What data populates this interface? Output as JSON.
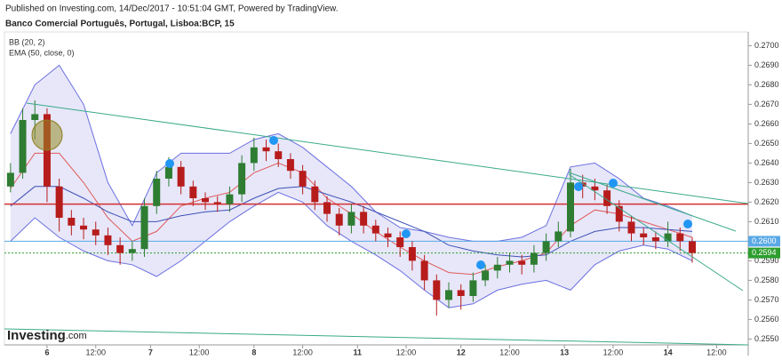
{
  "header": {
    "text": "Published on Investing.com, 14/Dec/2017 - 10:51:04 GMT, Powered by TradingView."
  },
  "logo": {
    "main": "Investing",
    "suffix": ".com"
  },
  "chart_data": {
    "type": "candlestick",
    "title": "Banco Comercial Português, Portugal, Lisboa:BCP, 15",
    "indicators": [
      "BB (20, 2)",
      "EMA (50, close, 0)"
    ],
    "x": [
      -3,
      -2,
      -1,
      0,
      1,
      2,
      3,
      4,
      5,
      6,
      7,
      8,
      9,
      10,
      11,
      12,
      13,
      14,
      15,
      16,
      17,
      18,
      19,
      20,
      21,
      22,
      23,
      24,
      25,
      26,
      27,
      28,
      29,
      30,
      31,
      32,
      33,
      34,
      35,
      36,
      37,
      38,
      39,
      40,
      41,
      42,
      43,
      44,
      45,
      46,
      47,
      48,
      49,
      50,
      51,
      52,
      53
    ],
    "open": [
      0.2628,
      0.2635,
      0.2662,
      0.2665,
      0.2628,
      0.2612,
      0.2608,
      0.2606,
      0.2603,
      0.2598,
      0.2594,
      0.2596,
      0.2618,
      0.2632,
      0.2638,
      0.2628,
      0.2622,
      0.262,
      0.2619,
      0.2624,
      0.264,
      0.2648,
      0.2646,
      0.2642,
      0.2636,
      0.2628,
      0.262,
      0.2614,
      0.2608,
      0.2615,
      0.2608,
      0.2604,
      0.2602,
      0.2597,
      0.259,
      0.258,
      0.257,
      0.2575,
      0.2572,
      0.258,
      0.2585,
      0.2588,
      0.259,
      0.2588,
      0.2594,
      0.26,
      0.2605,
      0.263,
      0.2628,
      0.2626,
      0.2618,
      0.261,
      0.2604,
      0.2602,
      0.26,
      0.2604,
      0.26
    ],
    "high": [
      0.264,
      0.2668,
      0.2672,
      0.2668,
      0.2632,
      0.2616,
      0.2612,
      0.261,
      0.2607,
      0.2602,
      0.26,
      0.2622,
      0.2636,
      0.2643,
      0.2641,
      0.2631,
      0.2625,
      0.2623,
      0.2628,
      0.2644,
      0.2653,
      0.2652,
      0.265,
      0.2645,
      0.2639,
      0.2631,
      0.2623,
      0.2617,
      0.2619,
      0.2618,
      0.2611,
      0.2607,
      0.2605,
      0.26,
      0.2593,
      0.2583,
      0.2579,
      0.2578,
      0.2584,
      0.2588,
      0.2592,
      0.2594,
      0.2593,
      0.2598,
      0.2604,
      0.261,
      0.2637,
      0.2634,
      0.2632,
      0.2629,
      0.2621,
      0.2613,
      0.2607,
      0.2605,
      0.261,
      0.2607,
      0.2602
    ],
    "low": [
      0.2625,
      0.2632,
      0.2652,
      0.262,
      0.2605,
      0.2603,
      0.2601,
      0.2598,
      0.2593,
      0.2588,
      0.259,
      0.2592,
      0.2614,
      0.2628,
      0.2624,
      0.2618,
      0.2616,
      0.2615,
      0.2615,
      0.262,
      0.2636,
      0.2641,
      0.2638,
      0.2632,
      0.2624,
      0.2616,
      0.261,
      0.2603,
      0.2604,
      0.2604,
      0.26,
      0.2597,
      0.2592,
      0.2585,
      0.2575,
      0.2562,
      0.2566,
      0.2565,
      0.2569,
      0.2577,
      0.2581,
      0.2584,
      0.2583,
      0.2584,
      0.259,
      0.2597,
      0.2602,
      0.2622,
      0.2621,
      0.2614,
      0.2605,
      0.26,
      0.2598,
      0.2596,
      0.2597,
      0.2595,
      0.2589
    ],
    "close": [
      0.2635,
      0.2662,
      0.2665,
      0.2628,
      0.2612,
      0.2608,
      0.2606,
      0.2603,
      0.2598,
      0.2594,
      0.2596,
      0.2618,
      0.2632,
      0.2638,
      0.2628,
      0.2622,
      0.262,
      0.2619,
      0.2624,
      0.264,
      0.2648,
      0.2646,
      0.2642,
      0.2636,
      0.2628,
      0.262,
      0.2614,
      0.2608,
      0.2615,
      0.2608,
      0.2604,
      0.2602,
      0.2597,
      0.259,
      0.258,
      0.257,
      0.2575,
      0.2572,
      0.258,
      0.2585,
      0.2588,
      0.259,
      0.2588,
      0.2594,
      0.26,
      0.2605,
      0.263,
      0.2628,
      0.2626,
      0.2618,
      0.261,
      0.2604,
      0.2602,
      0.26,
      0.2604,
      0.26,
      0.2594
    ],
    "up_color": "#2e7d32",
    "down_color": "#b71c1c",
    "overlay_x": [
      -3,
      -1,
      1,
      3,
      5,
      7,
      9,
      11,
      13,
      15,
      17,
      19,
      21,
      23,
      25,
      27,
      29,
      31,
      33,
      35,
      37,
      39,
      41,
      43,
      45,
      47,
      49,
      51,
      53
    ],
    "band": {
      "color": "#6b6fe0",
      "fill": "rgba(120,120,220,0.18)",
      "upper": [
        0.2655,
        0.268,
        0.269,
        0.267,
        0.263,
        0.2608,
        0.2635,
        0.2645,
        0.2645,
        0.2645,
        0.2652,
        0.2655,
        0.2648,
        0.2638,
        0.2628,
        0.2615,
        0.2607,
        0.2605,
        0.2602,
        0.26,
        0.26,
        0.2602,
        0.2608,
        0.2638,
        0.264,
        0.2632,
        0.2622,
        0.2618,
        0.2613
      ],
      "lower": [
        0.26,
        0.2612,
        0.2602,
        0.2595,
        0.259,
        0.2588,
        0.2582,
        0.259,
        0.26,
        0.261,
        0.2618,
        0.2625,
        0.262,
        0.2608,
        0.26,
        0.2593,
        0.2585,
        0.2575,
        0.2566,
        0.2568,
        0.2575,
        0.2578,
        0.258,
        0.2575,
        0.2588,
        0.2595,
        0.2598,
        0.2596,
        0.259
      ]
    },
    "overlays": [
      {
        "color": "#e05a5a",
        "values": [
          0.2627,
          0.2645,
          0.2645,
          0.263,
          0.2612,
          0.26,
          0.2605,
          0.2618,
          0.2622,
          0.2625,
          0.2635,
          0.264,
          0.2635,
          0.2622,
          0.2614,
          0.2605,
          0.2597,
          0.259,
          0.2584,
          0.2583,
          0.2587,
          0.259,
          0.2594,
          0.2608,
          0.2616,
          0.2614,
          0.261,
          0.2606,
          0.2602
        ]
      },
      {
        "color": "#3f51b5",
        "values": [
          0.2618,
          0.2628,
          0.2628,
          0.2622,
          0.2615,
          0.261,
          0.261,
          0.2613,
          0.2615,
          0.2616,
          0.2622,
          0.2627,
          0.2628,
          0.2624,
          0.262,
          0.2615,
          0.261,
          0.2605,
          0.2598,
          0.2595,
          0.2593,
          0.2592,
          0.2593,
          0.26,
          0.2605,
          0.2607,
          0.2607,
          0.2606,
          0.2605
        ]
      }
    ],
    "levels": [
      {
        "value": 0.2619,
        "color": "#d32f2f"
      },
      {
        "value": 0.26,
        "label": "0.2600",
        "color": "#5aa9e6"
      },
      {
        "value": 0.2594,
        "label": "0.2594",
        "color": "#2e9e2e"
      }
    ],
    "xlim": [
      -3.5,
      57.6
    ],
    "xticks": [
      {
        "value": 0,
        "label": "6"
      },
      {
        "value": 4,
        "label": "12:00"
      },
      {
        "value": 8.5,
        "label": "7"
      },
      {
        "value": 12.5,
        "label": "12:00"
      },
      {
        "value": 17,
        "label": "8"
      },
      {
        "value": 21,
        "label": "12:00"
      },
      {
        "value": 25.5,
        "label": "11"
      },
      {
        "value": 29.5,
        "label": "12:00"
      },
      {
        "value": 34,
        "label": "12"
      },
      {
        "value": 38,
        "label": "12:00"
      },
      {
        "value": 42.5,
        "label": "13"
      },
      {
        "value": 46.5,
        "label": "12:00"
      },
      {
        "value": 51,
        "label": "14"
      },
      {
        "value": 55,
        "label": "12:00"
      }
    ],
    "ylim": [
      0.2547,
      0.2707
    ],
    "yticks": [
      {
        "value": 0.255,
        "label": "0.2550"
      },
      {
        "value": 0.256,
        "label": "0.2560"
      },
      {
        "value": 0.257,
        "label": "0.2570"
      },
      {
        "value": 0.258,
        "label": "0.2580"
      },
      {
        "value": 0.259,
        "label": "0.2590"
      },
      {
        "value": 0.261,
        "label": "0.2610"
      },
      {
        "value": 0.262,
        "label": "0.2620"
      },
      {
        "value": 0.263,
        "label": "0.2630"
      },
      {
        "value": 0.264,
        "label": "0.2640"
      },
      {
        "value": 0.265,
        "label": "0.2650"
      },
      {
        "value": 0.266,
        "label": "0.2660"
      },
      {
        "value": 0.267,
        "label": "0.2670"
      },
      {
        "value": 0.268,
        "label": "0.2680"
      },
      {
        "value": 0.269,
        "label": "0.2690"
      },
      {
        "value": 0.27,
        "label": "0.2700"
      }
    ]
  }
}
